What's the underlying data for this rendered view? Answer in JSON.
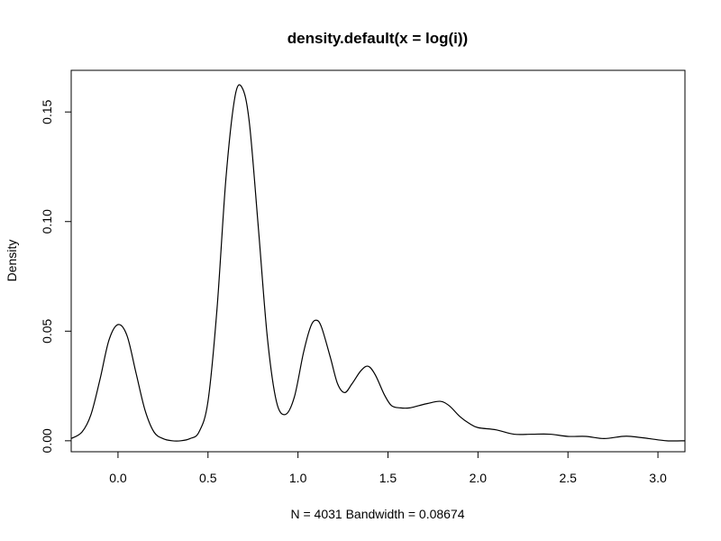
{
  "chart_data": {
    "type": "line",
    "title": "density.default(x = log(i))",
    "xlabel": "N = 4031   Bandwidth = 0.08674",
    "ylabel": "Density",
    "xlim": [
      -0.26,
      3.15
    ],
    "ylim": [
      -0.005,
      0.169
    ],
    "x_ticks": [
      0.0,
      0.5,
      1.0,
      1.5,
      2.0,
      2.5,
      3.0
    ],
    "x_tick_labels": [
      "0.0",
      "0.5",
      "1.0",
      "1.5",
      "2.0",
      "2.5",
      "3.0"
    ],
    "y_ticks": [
      0.0,
      0.05,
      0.1,
      0.15
    ],
    "y_tick_labels": [
      "0.00",
      "0.05",
      "0.10",
      "0.15"
    ],
    "grid": false,
    "legend": "none",
    "series": [
      {
        "color": "#000000",
        "x": [
          -0.26,
          -0.2,
          -0.15,
          -0.1,
          -0.05,
          0.0,
          0.05,
          0.1,
          0.15,
          0.2,
          0.25,
          0.3,
          0.35,
          0.4,
          0.45,
          0.5,
          0.55,
          0.6,
          0.65,
          0.69,
          0.73,
          0.78,
          0.83,
          0.88,
          0.93,
          0.98,
          1.03,
          1.07,
          1.1,
          1.13,
          1.18,
          1.22,
          1.26,
          1.3,
          1.35,
          1.39,
          1.43,
          1.48,
          1.52,
          1.57,
          1.62,
          1.67,
          1.72,
          1.79,
          1.84,
          1.9,
          1.95,
          2.0,
          2.1,
          2.2,
          2.3,
          2.4,
          2.5,
          2.6,
          2.7,
          2.8,
          2.85,
          2.95,
          3.05,
          3.15
        ],
        "y": [
          0.001,
          0.004,
          0.012,
          0.028,
          0.046,
          0.053,
          0.048,
          0.031,
          0.014,
          0.004,
          0.001,
          0.0,
          0.0,
          0.001,
          0.004,
          0.018,
          0.06,
          0.12,
          0.157,
          0.161,
          0.145,
          0.097,
          0.047,
          0.018,
          0.012,
          0.02,
          0.04,
          0.052,
          0.055,
          0.052,
          0.038,
          0.026,
          0.022,
          0.026,
          0.032,
          0.034,
          0.03,
          0.021,
          0.016,
          0.015,
          0.015,
          0.016,
          0.017,
          0.018,
          0.016,
          0.011,
          0.008,
          0.006,
          0.005,
          0.003,
          0.003,
          0.003,
          0.002,
          0.002,
          0.001,
          0.002,
          0.002,
          0.001,
          0.0,
          0.0
        ]
      }
    ]
  }
}
